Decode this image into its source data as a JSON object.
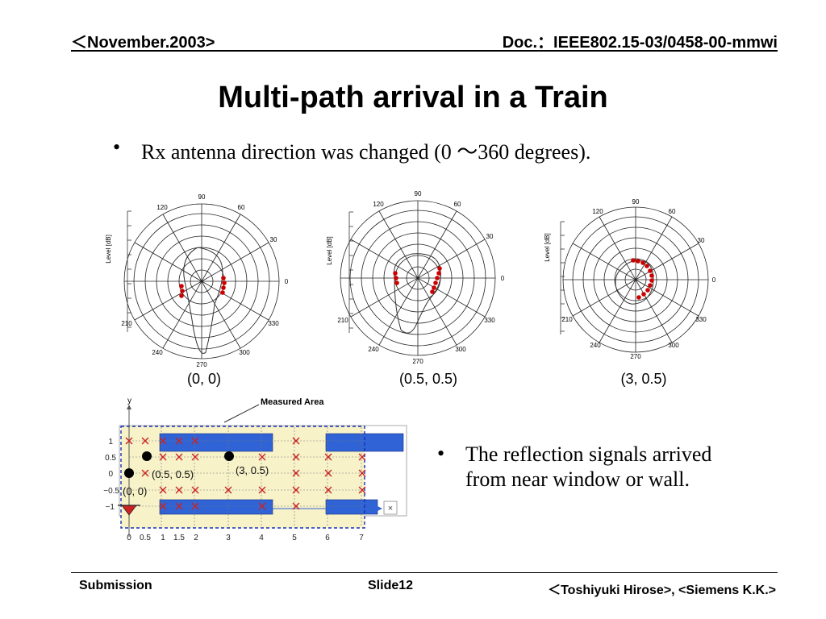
{
  "header": {
    "date": "＜November.2003>",
    "doc": "Doc.：IEEE802.15-03/0458-00-mmwi"
  },
  "title": "Multi-path arrival in a Train",
  "bullet1": {
    "marker": "•",
    "text": "Rx antenna direction was changed (0 ～360 degrees)."
  },
  "bullet2": {
    "marker": "•",
    "line1": "The reflection signals arrived",
    "line2": "from near window or wall."
  },
  "polar_plots": {
    "axis_label": "Level [dB]",
    "angle_labels": [
      "90",
      "60",
      "30",
      "0",
      "330",
      "300",
      "270",
      "240",
      "210",
      "120"
    ],
    "captions": [
      "(0, 0)",
      "(0.5, 0.5)",
      "(3, 0.5)"
    ],
    "marker_color": "#cc0000"
  },
  "floor_map": {
    "measured_area_label": "Measured Area",
    "y_axis_name": "y",
    "y_ticks": [
      "1",
      "0.5",
      "0",
      "−0.5",
      "−1"
    ],
    "x_ticks": [
      "0",
      "0.5",
      "1",
      "1.5",
      "2",
      "3",
      "4",
      "5",
      "6",
      "7"
    ],
    "point_labels": [
      "(0.5, 0.5)",
      "(3, 0.5)",
      "(0, 0)"
    ],
    "close_glyph": "×",
    "colors": {
      "area": "#f7f2c8",
      "seat": "#2f63d6",
      "marker": "#cc2222",
      "boundary": "#1a2fb5"
    }
  },
  "footer": {
    "left": "Submission",
    "center": "Slide12",
    "right": "＜Toshiyuki  Hirose>, <Siemens K.K.>"
  }
}
